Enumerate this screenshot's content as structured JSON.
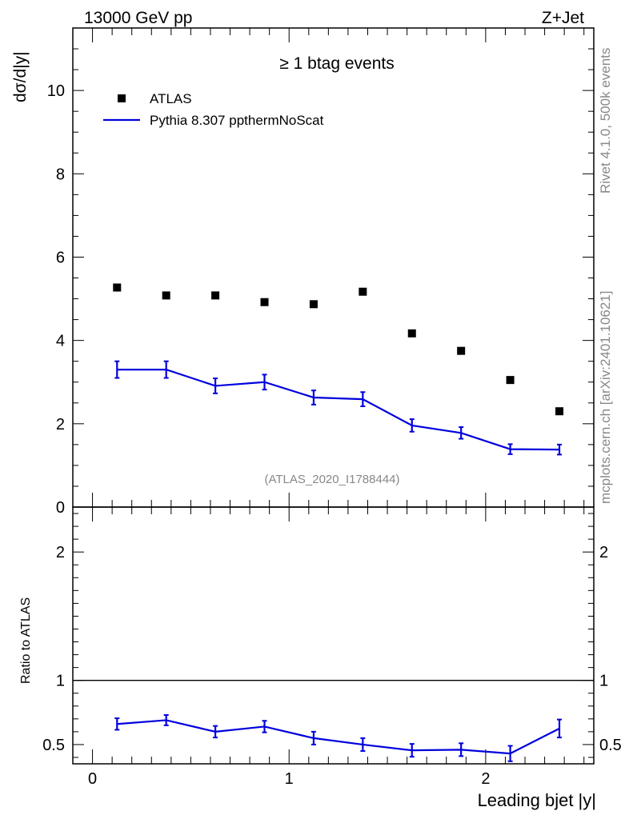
{
  "header": {
    "left": "13000 GeV pp",
    "right": "Z+Jet"
  },
  "side": {
    "rivet": "Rivet 4.1.0,  500k events",
    "mcplots": "mcplots.cern.ch [arXiv:2401.10621]"
  },
  "chart_data": [
    {
      "type": "scatter",
      "title": "≥ 1 btag events",
      "analysis": "(ATLAS_2020_I1788444)",
      "ylabel": "dσ/d|y|",
      "xlabel": "Leading bjet |y|",
      "xlim": [
        -0.1,
        2.55
      ],
      "ylim": [
        0,
        11.5
      ],
      "x_ticks": [
        0,
        1,
        2
      ],
      "x_tick_labels": [
        "0",
        "1",
        "2"
      ],
      "y_ticks": [
        0,
        2,
        4,
        6,
        8,
        10
      ],
      "y_tick_labels": [
        "0",
        "2",
        "4",
        "6",
        "8",
        "10"
      ],
      "legend": [
        "ATLAS",
        "Pythia 8.307 ppthermNoScat"
      ],
      "x": [
        0.125,
        0.375,
        0.625,
        0.875,
        1.125,
        1.375,
        1.625,
        1.875,
        2.125,
        2.375
      ],
      "bin_edges": [
        0,
        0.25,
        0.5,
        0.75,
        1.0,
        1.25,
        1.5,
        1.75,
        2.0,
        2.25,
        2.5
      ],
      "series": [
        {
          "name": "ATLAS",
          "style": "marker",
          "color": "#000000",
          "values": [
            5.27,
            5.08,
            5.08,
            4.92,
            4.87,
            5.17,
            4.17,
            3.75,
            3.05,
            2.3
          ]
        },
        {
          "name": "Pythia 8.307 ppthermNoScat",
          "style": "line",
          "color": "#0000dd",
          "values": [
            3.3,
            3.3,
            2.91,
            3.0,
            2.63,
            2.59,
            1.96,
            1.78,
            1.39,
            1.38
          ],
          "errors": [
            0.2,
            0.2,
            0.18,
            0.18,
            0.17,
            0.17,
            0.15,
            0.14,
            0.12,
            0.12
          ]
        }
      ]
    },
    {
      "type": "line",
      "ylabel": "Ratio to ATLAS",
      "xlabel": "Leading bjet |y|",
      "ylim": [
        0.35,
        2.35
      ],
      "y_ticks": [
        0.5,
        1,
        2
      ],
      "y_tick_labels": [
        "0.5",
        "1",
        "2"
      ],
      "reference": 1,
      "series": [
        {
          "name": "Pythia 8.307 ppthermNoScat",
          "color": "#0000dd",
          "values": [
            0.66,
            0.69,
            0.6,
            0.64,
            0.55,
            0.5,
            0.455,
            0.46,
            0.43,
            0.625
          ],
          "errors": [
            0.045,
            0.04,
            0.045,
            0.045,
            0.05,
            0.05,
            0.05,
            0.05,
            0.06,
            0.07
          ]
        }
      ]
    }
  ]
}
